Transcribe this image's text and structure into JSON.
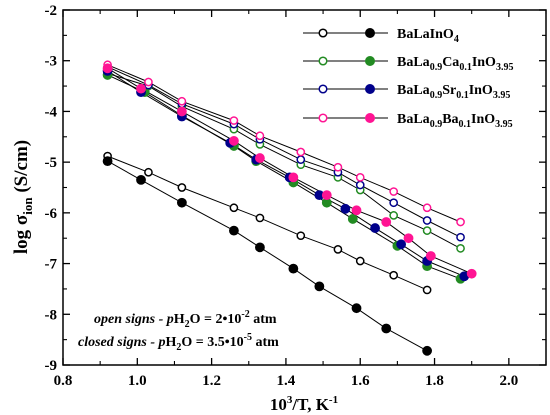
{
  "chart_data": {
    "type": "scatter",
    "xlim": [
      0.8,
      2.1
    ],
    "ylim": [
      -9,
      -2
    ],
    "x_ticks": [
      "0.8",
      "1.0",
      "1.2",
      "1.4",
      "1.6",
      "1.8",
      "2.0"
    ],
    "y_ticks": [
      "-9",
      "-8",
      "-7",
      "-6",
      "-5",
      "-4",
      "-3",
      "-2"
    ],
    "xlabel": {
      "base": "10",
      "exp": "3",
      "rest": "/T, K",
      "exp2": "-1"
    },
    "ylabel": {
      "pre": "log σ",
      "sub": "ion",
      "post": " (S/cm)"
    },
    "grid": false,
    "legend_position": "top-right",
    "series": [
      {
        "name": {
          "parts": [
            [
              "BaLaInO",
              ""
            ],
            [
              "4",
              "sub"
            ]
          ]
        },
        "color": "#000000",
        "open": {
          "x": [
            0.92,
            1.03,
            1.12,
            1.26,
            1.33,
            1.44,
            1.54,
            1.6,
            1.69,
            1.78
          ],
          "y": [
            -4.88,
            -5.2,
            -5.5,
            -5.9,
            -6.1,
            -6.45,
            -6.72,
            -6.95,
            -7.23,
            -7.52
          ]
        },
        "closed": {
          "x": [
            0.92,
            1.01,
            1.12,
            1.26,
            1.33,
            1.42,
            1.49,
            1.59,
            1.67,
            1.78
          ],
          "y": [
            -4.98,
            -5.35,
            -5.8,
            -6.35,
            -6.68,
            -7.1,
            -7.45,
            -7.88,
            -8.28,
            -8.72
          ]
        }
      },
      {
        "name": {
          "parts": [
            [
              "BaLa",
              ""
            ],
            [
              "0.9",
              "sub"
            ],
            [
              "Ca",
              ""
            ],
            [
              "0.1",
              "sub"
            ],
            [
              "InO",
              ""
            ],
            [
              "3.95",
              "sub"
            ]
          ]
        },
        "color": "#228B22",
        "open": {
          "x": [
            0.92,
            1.03,
            1.12,
            1.26,
            1.33,
            1.44,
            1.54,
            1.6,
            1.69,
            1.78,
            1.87
          ],
          "y": [
            -3.25,
            -3.5,
            -3.9,
            -4.35,
            -4.65,
            -5.05,
            -5.3,
            -5.55,
            -6.05,
            -6.35,
            -6.7
          ]
        },
        "closed": {
          "x": [
            0.92,
            1.02,
            1.12,
            1.26,
            1.32,
            1.42,
            1.51,
            1.58,
            1.7,
            1.78,
            1.87
          ],
          "y": [
            -3.28,
            -3.62,
            -4.08,
            -4.68,
            -4.98,
            -5.4,
            -5.8,
            -6.12,
            -6.65,
            -7.05,
            -7.3
          ]
        }
      },
      {
        "name": {
          "parts": [
            [
              "BaLa",
              ""
            ],
            [
              "0.9",
              "sub"
            ],
            [
              "Sr",
              ""
            ],
            [
              "0.1",
              "sub"
            ],
            [
              "InO",
              ""
            ],
            [
              "3.95",
              "sub"
            ]
          ]
        },
        "color": "#00008B",
        "open": {
          "x": [
            0.92,
            1.03,
            1.12,
            1.26,
            1.33,
            1.44,
            1.54,
            1.6,
            1.69,
            1.78,
            1.87
          ],
          "y": [
            -3.12,
            -3.48,
            -3.85,
            -4.25,
            -4.55,
            -4.95,
            -5.2,
            -5.45,
            -5.8,
            -6.15,
            -6.48
          ]
        },
        "closed": {
          "x": [
            0.92,
            1.01,
            1.12,
            1.25,
            1.32,
            1.41,
            1.49,
            1.56,
            1.64,
            1.71,
            1.78,
            1.88
          ],
          "y": [
            -3.2,
            -3.62,
            -4.1,
            -4.62,
            -4.95,
            -5.3,
            -5.65,
            -5.92,
            -6.3,
            -6.62,
            -6.95,
            -7.25
          ]
        }
      },
      {
        "name": {
          "parts": [
            [
              "BaLa",
              ""
            ],
            [
              "0.9",
              "sub"
            ],
            [
              "Ba",
              ""
            ],
            [
              "0.1",
              "sub"
            ],
            [
              "InO",
              ""
            ],
            [
              "3.95",
              "sub"
            ]
          ]
        },
        "color": "#FF1493",
        "open": {
          "x": [
            0.92,
            1.03,
            1.12,
            1.26,
            1.33,
            1.44,
            1.54,
            1.6,
            1.69,
            1.78,
            1.87
          ],
          "y": [
            -3.08,
            -3.42,
            -3.8,
            -4.18,
            -4.48,
            -4.8,
            -5.1,
            -5.3,
            -5.58,
            -5.9,
            -6.18
          ]
        },
        "closed": {
          "x": [
            0.92,
            1.01,
            1.12,
            1.26,
            1.33,
            1.42,
            1.51,
            1.59,
            1.67,
            1.73,
            1.79,
            1.9
          ],
          "y": [
            -3.15,
            -3.55,
            -4.0,
            -4.58,
            -4.92,
            -5.3,
            -5.65,
            -5.95,
            -6.18,
            -6.5,
            -6.85,
            -7.2
          ]
        }
      }
    ],
    "annotations": [
      {
        "lead": "open signs - ",
        "p": "p",
        "h": "H",
        "h_sub": "2",
        "o": "O = 2•10",
        "exp": "-2",
        "tail": " atm"
      },
      {
        "lead": "closed signs - ",
        "p": "p",
        "h": "H",
        "h_sub": "2",
        "o": "O = 3.5•10",
        "exp": "-5",
        "tail": " atm"
      }
    ]
  }
}
